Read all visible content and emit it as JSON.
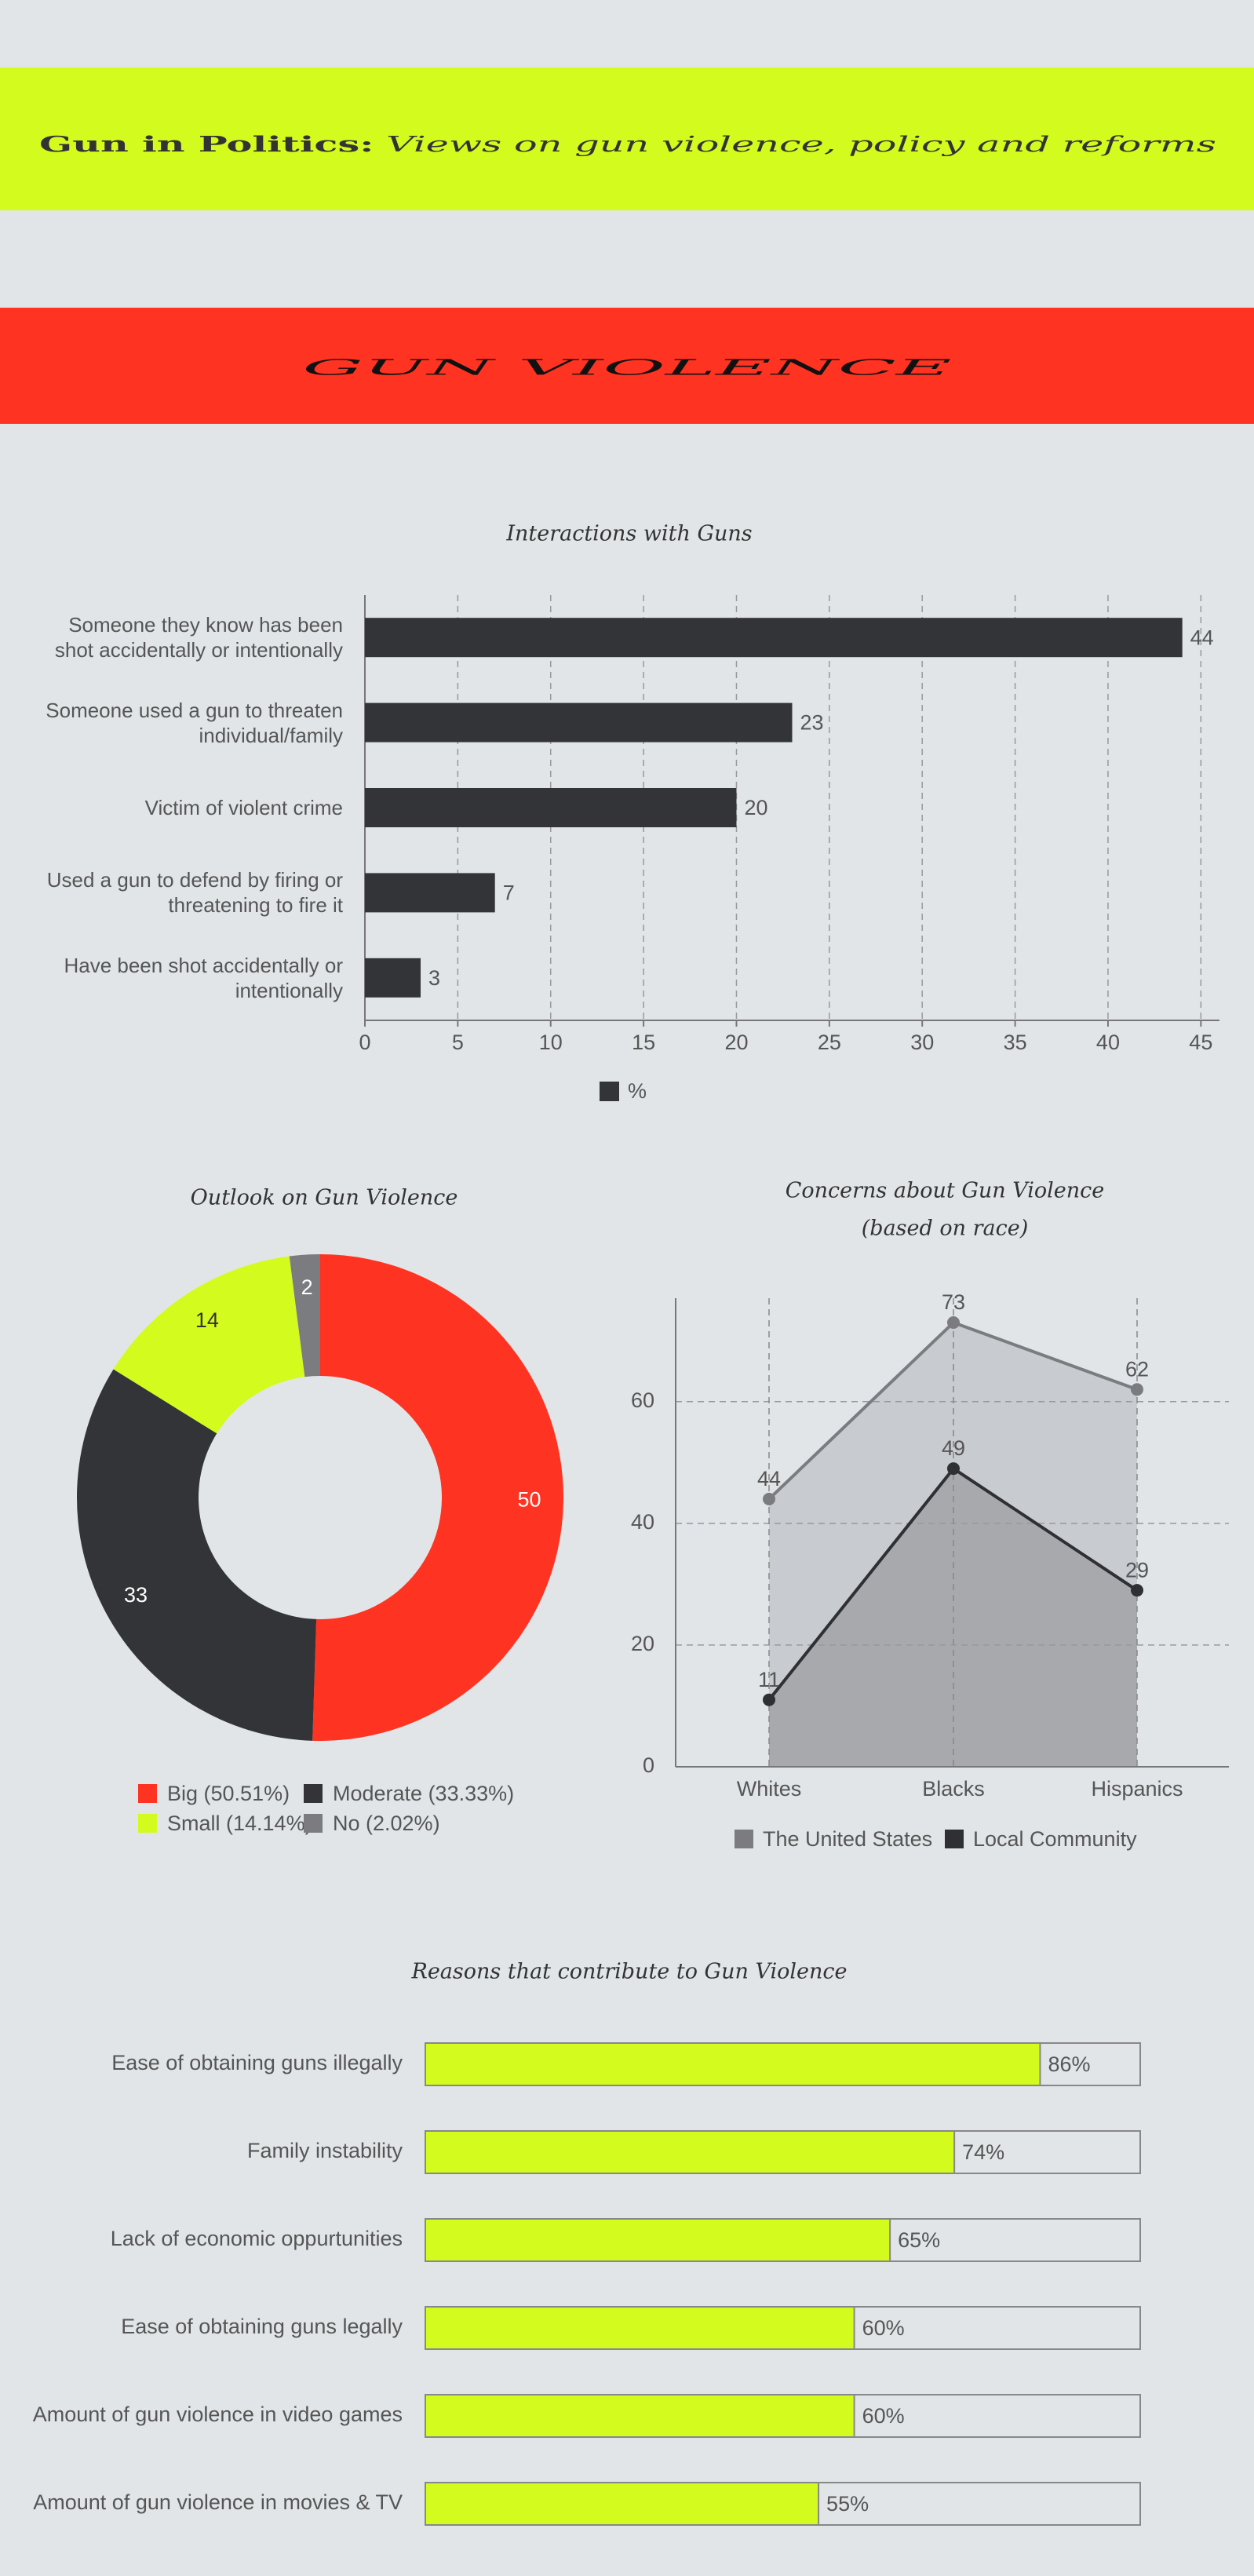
{
  "header": {
    "title_bold": "Gun in Politics:",
    "title_italic": "Views on gun violence, policy and reforms"
  },
  "banner": "GUN VIOLENCE",
  "chart_data": [
    {
      "type": "bar",
      "orientation": "horizontal",
      "title": "Interactions with Guns",
      "categories": [
        "Someone they know has been shot accidentally or intentionally",
        "Someone used a gun to threaten individual/family",
        "Victim of violent crime",
        "Used a gun to defend by firing or threatening to fire it",
        "Have been shot accidentally or intentionally"
      ],
      "series": [
        {
          "name": "%",
          "color": "#333438",
          "values": [
            44,
            23,
            20,
            7,
            3
          ]
        }
      ],
      "xlim": [
        0,
        46
      ],
      "xticks": [
        0,
        5,
        10,
        15,
        20,
        25,
        30,
        35,
        40,
        45
      ],
      "grid": true,
      "legend": "bottom"
    },
    {
      "type": "pie",
      "donut": true,
      "title": "Outlook on Gun Violence",
      "categories": [
        "Big",
        "Moderate",
        "Small",
        "No"
      ],
      "values": [
        50,
        33,
        14,
        2
      ],
      "legend_labels": [
        "Big (50.51%)",
        "Moderate (33.33%)",
        "Small (14.14%)",
        "No (2.02%)"
      ],
      "colors": [
        "#ff3322",
        "#333438",
        "#d4fb1e",
        "#7b7c80"
      ],
      "label_colors": [
        "#ffffff",
        "#ffffff",
        "#333333",
        "#ffffff"
      ],
      "legend": "bottom"
    },
    {
      "type": "area",
      "title_lines": [
        "Concerns about Gun Violence",
        "(based on race)"
      ],
      "categories": [
        "Whites",
        "Blacks",
        "Hispanics"
      ],
      "series": [
        {
          "name": "The United States",
          "color": "#7b7c80",
          "fill": "#c8cbcf",
          "values": [
            44,
            73,
            62
          ]
        },
        {
          "name": "Local Community",
          "color": "#2f3034",
          "fill": "#a8a9ac",
          "values": [
            11,
            49,
            29
          ]
        }
      ],
      "ylim": [
        0,
        77
      ],
      "yticks": [
        0,
        20,
        40,
        60
      ],
      "grid": true,
      "legend": "bottom"
    },
    {
      "type": "progress",
      "title": "Reasons that contribute to Gun Violence",
      "categories": [
        "Ease of obtaining guns illegally",
        "Family instability",
        "Lack of economic oppurtunities",
        "Ease of obtaining guns legally",
        "Amount of gun violence in video games",
        "Amount of gun violence in movies & TV"
      ],
      "values": [
        86,
        74,
        65,
        60,
        60,
        55
      ],
      "value_labels": [
        "86%",
        "74%",
        "65%",
        "60%",
        "60%",
        "55%"
      ],
      "xlim": [
        0,
        100
      ],
      "color": "#d4fb1e"
    }
  ]
}
